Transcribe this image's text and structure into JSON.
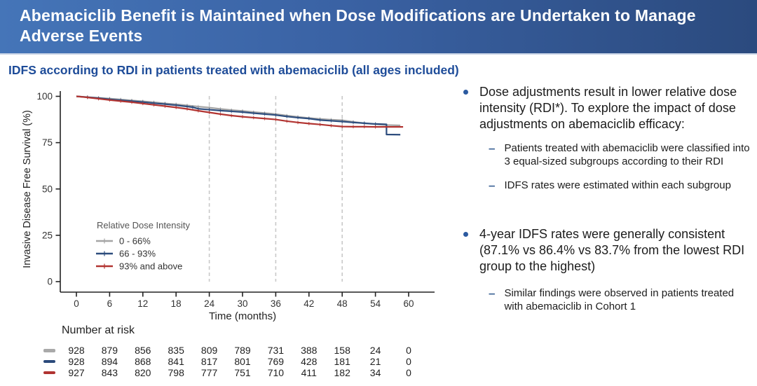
{
  "header": {
    "title": "Abemaciclib Benefit is Maintained when Dose Modifications are Undertaken to Manage Adverse Events"
  },
  "subtitle": "IDFS according to RDI in patients treated with abemaciclib (all ages included)",
  "colors": {
    "header_gradient_left": "#4575b8",
    "header_gradient_right": "#2b4a7e",
    "subtitle_blue": "#1e4c99",
    "bullet_blue": "#2c5aa0",
    "series_gray": "#a5a5a5",
    "series_blue": "#2d4d7d",
    "series_red": "#b23431",
    "dashed_line": "#c9c9c9",
    "axis": "#333333"
  },
  "chart_data": {
    "type": "line",
    "subtype": "kaplan-meier",
    "title": "",
    "xlabel": "Time (months)",
    "ylabel": "Invasive Disease Free Survival (%)",
    "xlim": [
      0,
      60
    ],
    "ylim": [
      0,
      100
    ],
    "x_ticks": [
      0,
      6,
      12,
      18,
      24,
      30,
      36,
      42,
      48,
      54,
      60
    ],
    "y_ticks": [
      0,
      25,
      50,
      75,
      100
    ],
    "dashed_vlines_months": [
      24,
      36,
      48
    ],
    "grid": false,
    "legend": {
      "title": "Relative Dose Intensity",
      "position": "inside-lower-left"
    },
    "series": [
      {
        "name": "0 - 66%",
        "color": "#a5a5a5",
        "points": [
          [
            0,
            100
          ],
          [
            2,
            99.6
          ],
          [
            4,
            99.2
          ],
          [
            6,
            98.8
          ],
          [
            8,
            98.3
          ],
          [
            10,
            97.8
          ],
          [
            12,
            97.3
          ],
          [
            14,
            96.8
          ],
          [
            16,
            96.2
          ],
          [
            18,
            95.7
          ],
          [
            20,
            95.1
          ],
          [
            22,
            94.5
          ],
          [
            24,
            93.9
          ],
          [
            26,
            93.2
          ],
          [
            28,
            92.6
          ],
          [
            30,
            92.1
          ],
          [
            32,
            91.5
          ],
          [
            34,
            91.0
          ],
          [
            36,
            90.4
          ],
          [
            38,
            89.6
          ],
          [
            40,
            88.9
          ],
          [
            42,
            88.3
          ],
          [
            44,
            87.8
          ],
          [
            46,
            87.4
          ],
          [
            48,
            87.1
          ],
          [
            50,
            86.2
          ],
          [
            52,
            85.5
          ],
          [
            54,
            84.9
          ],
          [
            56,
            84.5
          ],
          [
            58.5,
            84.3
          ]
        ]
      },
      {
        "name": "66 - 93%",
        "color": "#2d4d7d",
        "points": [
          [
            0,
            100
          ],
          [
            2,
            99.5
          ],
          [
            4,
            99.0
          ],
          [
            6,
            98.4
          ],
          [
            8,
            97.9
          ],
          [
            10,
            97.4
          ],
          [
            12,
            96.9
          ],
          [
            14,
            96.3
          ],
          [
            16,
            95.8
          ],
          [
            18,
            95.2
          ],
          [
            20,
            94.5
          ],
          [
            21,
            94.1
          ],
          [
            22,
            93.3
          ],
          [
            24,
            92.8
          ],
          [
            26,
            92.3
          ],
          [
            28,
            91.9
          ],
          [
            30,
            91.5
          ],
          [
            32,
            90.9
          ],
          [
            34,
            90.4
          ],
          [
            36,
            89.9
          ],
          [
            38,
            89.1
          ],
          [
            40,
            88.5
          ],
          [
            42,
            88.0
          ],
          [
            44,
            87.2
          ],
          [
            46,
            86.8
          ],
          [
            48,
            86.4
          ],
          [
            50,
            85.9
          ],
          [
            52,
            85.5
          ],
          [
            54,
            85.1
          ],
          [
            56,
            84.9
          ],
          [
            56,
            79.4
          ],
          [
            58.5,
            79.3
          ]
        ]
      },
      {
        "name": "93% and above",
        "color": "#b23431",
        "points": [
          [
            0,
            100
          ],
          [
            2,
            99.4
          ],
          [
            4,
            98.7
          ],
          [
            6,
            98.0
          ],
          [
            8,
            97.4
          ],
          [
            10,
            96.8
          ],
          [
            12,
            96.1
          ],
          [
            14,
            95.4
          ],
          [
            16,
            94.7
          ],
          [
            18,
            94.0
          ],
          [
            20,
            93.2
          ],
          [
            22,
            92.2
          ],
          [
            24,
            91.3
          ],
          [
            26,
            90.4
          ],
          [
            28,
            89.6
          ],
          [
            30,
            89.0
          ],
          [
            32,
            88.5
          ],
          [
            34,
            88.0
          ],
          [
            36,
            87.5
          ],
          [
            38,
            86.6
          ],
          [
            40,
            85.9
          ],
          [
            42,
            85.3
          ],
          [
            44,
            84.8
          ],
          [
            46,
            84.2
          ],
          [
            48,
            83.7
          ],
          [
            50,
            83.6
          ],
          [
            52,
            83.6
          ],
          [
            54,
            83.5
          ],
          [
            56,
            83.5
          ],
          [
            59,
            83.5
          ]
        ]
      }
    ],
    "four_year_idfs_rates_pct": {
      "0 - 66%": 87.1,
      "66 - 93%": 86.4,
      "93% and above": 83.7
    },
    "number_at_risk": {
      "label": "Number at risk",
      "time": [
        0,
        6,
        12,
        18,
        24,
        30,
        36,
        42,
        48,
        54,
        60
      ],
      "rows": [
        {
          "group": "0 - 66%",
          "color": "#a9a9a9",
          "values": [
            928,
            879,
            856,
            835,
            809,
            789,
            731,
            388,
            158,
            24,
            0
          ]
        },
        {
          "group": "66 - 93%",
          "color": "#2b4a7b",
          "values": [
            928,
            894,
            868,
            841,
            817,
            801,
            769,
            428,
            181,
            21,
            0
          ]
        },
        {
          "group": "93% and above",
          "color": "#b03331",
          "values": [
            927,
            843,
            820,
            798,
            777,
            751,
            710,
            411,
            182,
            34,
            0
          ]
        }
      ]
    }
  },
  "bullets": [
    {
      "text": "Dose adjustments result in lower relative dose intensity (RDI*). To explore the impact of dose adjustments on abemaciclib efficacy:",
      "subs": [
        "Patients treated with abemaciclib were classified into 3 equal-sized subgroups according to their RDI",
        "IDFS rates were estimated within each subgroup"
      ]
    },
    {
      "text": "4-year IDFS rates were generally consistent (87.1% vs 86.4% vs 83.7% from the lowest RDI group to the highest)",
      "subs": [
        "Similar findings were observed in patients treated with abemaciclib in Cohort 1"
      ]
    }
  ]
}
